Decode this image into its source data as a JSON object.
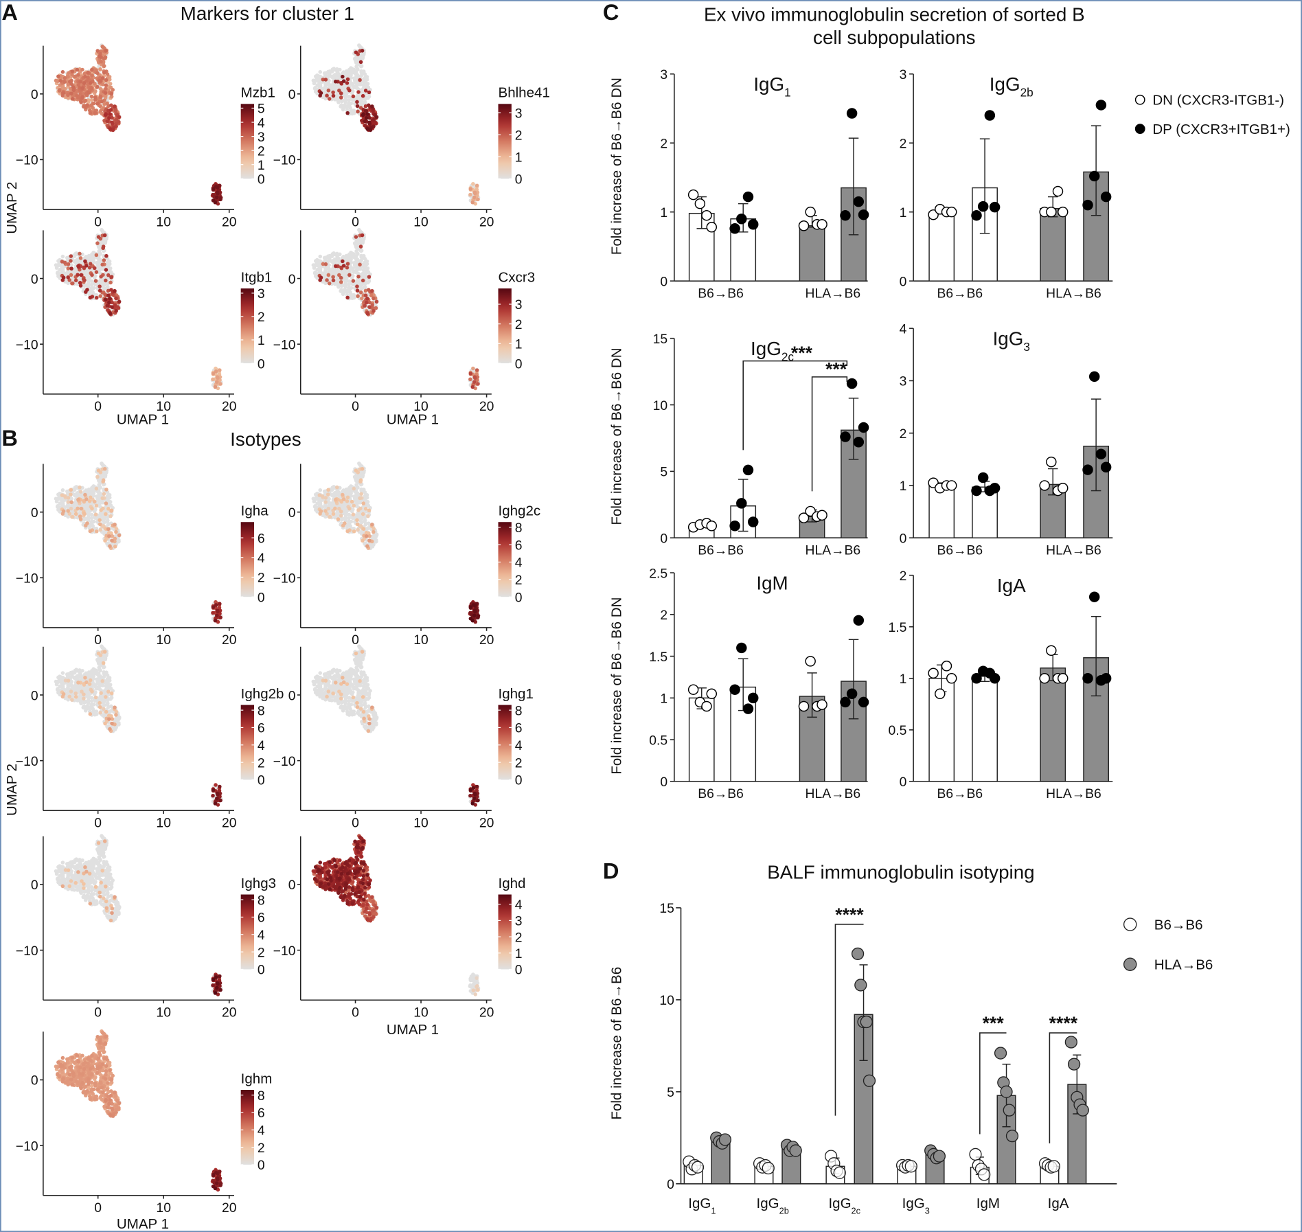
{
  "panel_letters": {
    "a": "A",
    "b": "B",
    "c": "C",
    "d": "D"
  },
  "panel_a": {
    "title": "Markers for cluster 1",
    "xlabel": "UMAP 1",
    "ylabel": "UMAP 2",
    "x_ticks": [
      "0",
      "10",
      "20"
    ],
    "y_ticks": [
      "0",
      "−10"
    ],
    "plots": [
      {
        "gene": "Mzb1",
        "colorbar_max": 5.3,
        "colorbar_ticks": [
          0,
          1,
          2,
          3,
          4,
          5
        ]
      },
      {
        "gene": "Bhlhe41",
        "colorbar_max": 3.4,
        "colorbar_ticks": [
          0,
          1,
          2,
          3
        ]
      },
      {
        "gene": "Itgb1",
        "colorbar_max": 3.2,
        "colorbar_ticks": [
          0,
          1,
          2,
          3
        ]
      },
      {
        "gene": "Cxcr3",
        "colorbar_max": 3.8,
        "colorbar_ticks": [
          0,
          1,
          2,
          3
        ]
      }
    ]
  },
  "panel_b": {
    "title": "Isotypes",
    "xlabel": "UMAP 1",
    "ylabel": "UMAP 2",
    "x_ticks": [
      "0",
      "10",
      "20"
    ],
    "y_ticks": [
      "0",
      "−10"
    ],
    "plots": [
      {
        "gene": "Igha",
        "colorbar_max": 7.6,
        "colorbar_ticks": [
          0,
          2,
          4,
          6
        ]
      },
      {
        "gene": "Ighg2c",
        "colorbar_max": 8.6,
        "colorbar_ticks": [
          0,
          2,
          4,
          6,
          8
        ]
      },
      {
        "gene": "Ighg2b",
        "colorbar_max": 8.6,
        "colorbar_ticks": [
          0,
          2,
          4,
          6,
          8
        ]
      },
      {
        "gene": "Ighg1",
        "colorbar_max": 8.6,
        "colorbar_ticks": [
          0,
          2,
          4,
          6,
          8
        ]
      },
      {
        "gene": "Ighg3",
        "colorbar_max": 8.6,
        "colorbar_ticks": [
          0,
          2,
          4,
          6,
          8
        ]
      },
      {
        "gene": "Ighd",
        "colorbar_max": 4.6,
        "colorbar_ticks": [
          0,
          1,
          2,
          3,
          4
        ]
      },
      {
        "gene": "Ighm",
        "colorbar_max": 8.6,
        "colorbar_ticks": [
          0,
          2,
          4,
          6,
          8
        ]
      }
    ]
  },
  "colors": {
    "low": "#e0e0e0",
    "mid1": "#f2c4a2",
    "mid2": "#d47a62",
    "mid3": "#a92c2c",
    "high": "#550812",
    "gray_bar": "#8c8c8c",
    "white": "#ffffff",
    "black": "#000000"
  },
  "chart_data": [
    {
      "type": "bar",
      "title": "Ex vivo immunoglobulin secretion of sorted B cell subpopulations",
      "title_lines": [
        "Ex vivo immunoglobulin secretion of sorted B",
        "cell subpopulations"
      ],
      "ylabel": "Fold increase of B6→B6 DN",
      "categories": [
        "B6→B6",
        "HLA→B6"
      ],
      "legend": [
        {
          "label": "DN (CXCR3-ITGB1-)",
          "marker": "open-circle"
        },
        {
          "label": "DP (CXCR3+ITGB1+)",
          "marker": "filled-circle"
        }
      ],
      "legend_position": "top-right",
      "subplots": [
        {
          "title": "IgG",
          "sub": "1",
          "ylim": [
            0,
            3
          ],
          "yticks": [
            "0",
            "1",
            "2",
            "3"
          ],
          "bars": [
            {
              "group": "B6→B6",
              "subset": "DN",
              "mean": 0.98,
              "err": [
                0.76,
                1.22
              ],
              "points": [
                1.25,
                1.12,
                0.95,
                0.78
              ]
            },
            {
              "group": "B6→B6",
              "subset": "DP",
              "mean": 0.9,
              "err": [
                0.71,
                1.12
              ],
              "points": [
                0.76,
                0.9,
                1.22,
                0.82
              ]
            },
            {
              "group": "HLA→B6",
              "subset": "DN",
              "mean": 0.8,
              "err": [
                0.78,
                0.95
              ],
              "points": [
                0.8,
                1.0,
                0.82,
                0.82
              ]
            },
            {
              "group": "HLA→B6",
              "subset": "DP",
              "mean": 1.35,
              "err": [
                0.67,
                2.07
              ],
              "points": [
                0.95,
                2.43,
                1.15,
                0.96
              ]
            }
          ]
        },
        {
          "title": "IgG",
          "sub": "2b",
          "ylim": [
            0,
            3
          ],
          "yticks": [
            "0",
            "1",
            "2",
            "3"
          ],
          "bars": [
            {
              "group": "B6→B6",
              "subset": "DN",
              "mean": 1.0,
              "err": [
                0.97,
                1.02
              ],
              "points": [
                0.96,
                1.04,
                1.0,
                1.0
              ]
            },
            {
              "group": "B6→B6",
              "subset": "DP",
              "mean": 1.35,
              "err": [
                0.69,
                2.06
              ],
              "points": [
                0.95,
                1.08,
                2.4,
                1.07
              ]
            },
            {
              "group": "HLA→B6",
              "subset": "DN",
              "mean": 1.05,
              "err": [
                0.93,
                1.22
              ],
              "points": [
                1.0,
                1.0,
                1.3,
                1.0
              ]
            },
            {
              "group": "HLA→B6",
              "subset": "DP",
              "mean": 1.58,
              "err": [
                0.95,
                2.25
              ],
              "points": [
                1.1,
                1.52,
                2.55,
                1.22
              ]
            }
          ]
        },
        {
          "title": "IgG",
          "sub": "2c",
          "ylim": [
            0,
            15
          ],
          "yticks": [
            "0",
            "5",
            "10",
            "15"
          ],
          "bars": [
            {
              "group": "B6→B6",
              "subset": "DN",
              "mean": 1.0,
              "err": [
                0.8,
                1.15
              ],
              "points": [
                0.8,
                1.0,
                1.1,
                0.9
              ]
            },
            {
              "group": "B6→B6",
              "subset": "DP",
              "mean": 2.4,
              "err": [
                0.5,
                4.4
              ],
              "points": [
                0.9,
                2.6,
                5.1,
                1.2
              ]
            },
            {
              "group": "HLA→B6",
              "subset": "DN",
              "mean": 1.6,
              "err": [
                1.2,
                2.1
              ],
              "points": [
                1.5,
                2.0,
                1.6,
                1.7
              ]
            },
            {
              "group": "HLA→B6",
              "subset": "DP",
              "mean": 8.1,
              "err": [
                5.9,
                10.5
              ],
              "points": [
                7.6,
                11.6,
                7.2,
                8.3
              ]
            }
          ],
          "comparisons": [
            {
              "from": 1,
              "to": 3,
              "y": 13.3,
              "label": "***"
            },
            {
              "from": 2,
              "to": 3,
              "y": 12.1,
              "label": "***"
            }
          ]
        },
        {
          "title": "IgG",
          "sub": "3",
          "ylim": [
            0,
            4
          ],
          "yticks": [
            "0",
            "1",
            "2",
            "3",
            "4"
          ],
          "bars": [
            {
              "group": "B6→B6",
              "subset": "DN",
              "mean": 1.0,
              "err": [
                0.93,
                1.05
              ],
              "points": [
                1.05,
                0.95,
                1.0,
                1.0
              ]
            },
            {
              "group": "B6→B6",
              "subset": "DP",
              "mean": 0.97,
              "err": [
                0.88,
                1.08
              ],
              "points": [
                0.9,
                1.15,
                0.9,
                0.95
              ]
            },
            {
              "group": "HLA→B6",
              "subset": "DN",
              "mean": 1.02,
              "err": [
                0.82,
                1.32
              ],
              "points": [
                1.0,
                1.45,
                0.9,
                0.95
              ]
            },
            {
              "group": "HLA→B6",
              "subset": "DP",
              "mean": 1.75,
              "err": [
                0.9,
                2.65
              ],
              "points": [
                1.3,
                3.08,
                1.6,
                1.35
              ]
            }
          ]
        },
        {
          "title": "IgM",
          "sub": "",
          "ylim": [
            0,
            2.5
          ],
          "yticks": [
            "0",
            "0.5",
            "1",
            "1.5",
            "2",
            "2.5"
          ],
          "bars": [
            {
              "group": "B6→B6",
              "subset": "DN",
              "mean": 1.0,
              "err": [
                0.87,
                1.12
              ],
              "points": [
                1.1,
                0.95,
                0.9,
                1.05
              ]
            },
            {
              "group": "B6→B6",
              "subset": "DP",
              "mean": 1.13,
              "err": [
                0.85,
                1.47
              ],
              "points": [
                1.1,
                1.6,
                0.87,
                1.0
              ]
            },
            {
              "group": "HLA→B6",
              "subset": "DN",
              "mean": 1.02,
              "err": [
                0.77,
                1.3
              ],
              "points": [
                0.9,
                1.44,
                0.9,
                0.92
              ]
            },
            {
              "group": "HLA→B6",
              "subset": "DP",
              "mean": 1.2,
              "err": [
                0.75,
                1.7
              ],
              "points": [
                0.95,
                1.05,
                1.93,
                0.95
              ]
            }
          ]
        },
        {
          "title": "IgA",
          "sub": "",
          "ylim": [
            0,
            2
          ],
          "yticks": [
            "0",
            "0.5",
            "1",
            "1.5",
            "2"
          ],
          "bars": [
            {
              "group": "B6→B6",
              "subset": "DN",
              "mean": 1.0,
              "err": [
                0.87,
                1.13
              ],
              "points": [
                1.05,
                0.85,
                1.12,
                1.0
              ]
            },
            {
              "group": "B6→B6",
              "subset": "DP",
              "mean": 1.02,
              "err": [
                0.97,
                1.07
              ],
              "points": [
                1.0,
                1.07,
                1.05,
                1.0
              ]
            },
            {
              "group": "HLA→B6",
              "subset": "DN",
              "mean": 1.1,
              "err": [
                0.98,
                1.23
              ],
              "points": [
                1.0,
                1.27,
                1.0,
                1.0
              ]
            },
            {
              "group": "HLA→B6",
              "subset": "DP",
              "mean": 1.2,
              "err": [
                0.83,
                1.6
              ],
              "points": [
                1.0,
                1.79,
                0.98,
                1.0
              ]
            }
          ]
        }
      ]
    },
    {
      "type": "bar",
      "title": "BALF immunoglobulin isotyping",
      "ylabel": "Fold increase of B6→B6",
      "ylim": [
        0,
        15
      ],
      "yticks": [
        "0",
        "5",
        "10",
        "15"
      ],
      "legend": [
        {
          "label": "B6→B6",
          "marker": "open-circle"
        },
        {
          "label": "HLA→B6",
          "marker": "gray-circle"
        }
      ],
      "legend_position": "top-right",
      "categories": [
        {
          "main": "IgG",
          "sub": "1"
        },
        {
          "main": "IgG",
          "sub": "2b"
        },
        {
          "main": "IgG",
          "sub": "2c"
        },
        {
          "main": "IgG",
          "sub": "3"
        },
        {
          "main": "IgM",
          "sub": ""
        },
        {
          "main": "IgA",
          "sub": ""
        }
      ],
      "series": [
        {
          "name": "B6→B6",
          "values": [
            1.0,
            0.95,
            0.95,
            0.95,
            0.9,
            0.95
          ],
          "err": [
            [
              0.85,
              1.15
            ],
            [
              0.85,
              1.1
            ],
            [
              0.55,
              1.4
            ],
            [
              0.85,
              1.05
            ],
            [
              0.5,
              1.45
            ],
            [
              0.85,
              1.05
            ]
          ],
          "points": [
            [
              1.2,
              0.8,
              1.0,
              0.9
            ],
            [
              1.1,
              0.9,
              1.0,
              0.85
            ],
            [
              1.5,
              1.1,
              0.7,
              0.6
            ],
            [
              1.0,
              0.9,
              1.0,
              0.95
            ],
            [
              1.6,
              1.0,
              0.8,
              0.5
            ],
            [
              1.1,
              1.0,
              0.9,
              0.95
            ]
          ]
        },
        {
          "name": "HLA→B6",
          "values": [
            2.4,
            2.0,
            9.2,
            1.6,
            4.8,
            5.4
          ],
          "err": [
            [
              2.25,
              2.55
            ],
            [
              1.8,
              2.2
            ],
            [
              6.7,
              11.9
            ],
            [
              1.4,
              1.8
            ],
            [
              3.1,
              6.5
            ],
            [
              3.8,
              7.0
            ]
          ],
          "points": [
            [
              2.5,
              2.3,
              2.2,
              2.4
            ],
            [
              2.1,
              1.8,
              2.0,
              1.8
            ],
            [
              12.5,
              10.8,
              8.8,
              8.8,
              5.6
            ],
            [
              1.8,
              1.6,
              1.4,
              1.5
            ],
            [
              7.1,
              5.5,
              5.0,
              4.0,
              2.6
            ],
            [
              7.7,
              6.5,
              4.7,
              4.3,
              4.0
            ]
          ]
        }
      ],
      "comparisons": [
        {
          "category": 2,
          "y": 14.1,
          "label": "****"
        },
        {
          "category": 4,
          "y": 8.2,
          "label": "***"
        },
        {
          "category": 5,
          "y": 8.2,
          "label": "****"
        }
      ]
    }
  ]
}
